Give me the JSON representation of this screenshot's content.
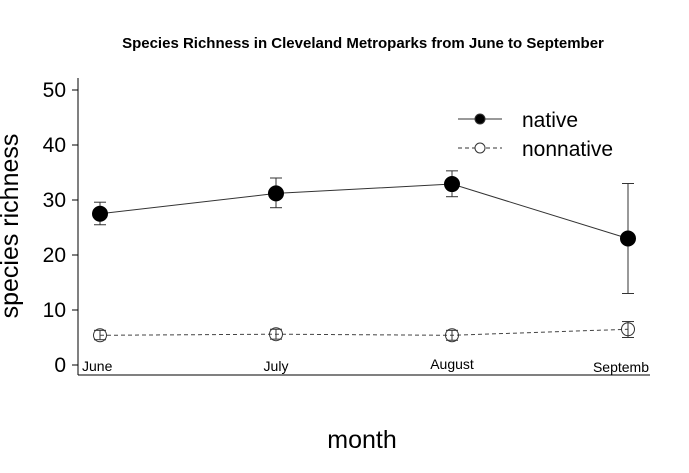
{
  "chart_data": {
    "type": "line",
    "title": "Species Richness in Cleveland Metroparks from June to September",
    "xlabel": "month",
    "ylabel": "species richness",
    "categories": [
      "June",
      "July",
      "August",
      "Septemb"
    ],
    "ylim": [
      0,
      50
    ],
    "yticks": [
      0,
      10,
      20,
      30,
      40,
      50
    ],
    "grid": false,
    "legend_position": "top-right",
    "series": [
      {
        "name": "native",
        "marker": "filled-circle",
        "line": "solid",
        "values": [
          27.5,
          31.2,
          32.9,
          23.0
        ],
        "err_low": [
          25.5,
          28.6,
          30.6,
          13.0
        ],
        "err_high": [
          29.6,
          34.0,
          35.3,
          33.0
        ]
      },
      {
        "name": "nonnative",
        "marker": "open-circle",
        "line": "dashed",
        "values": [
          5.4,
          5.6,
          5.4,
          6.5
        ],
        "err_low": [
          4.6,
          4.7,
          4.5,
          5.0
        ],
        "err_high": [
          6.3,
          6.5,
          6.3,
          7.9
        ]
      }
    ]
  }
}
